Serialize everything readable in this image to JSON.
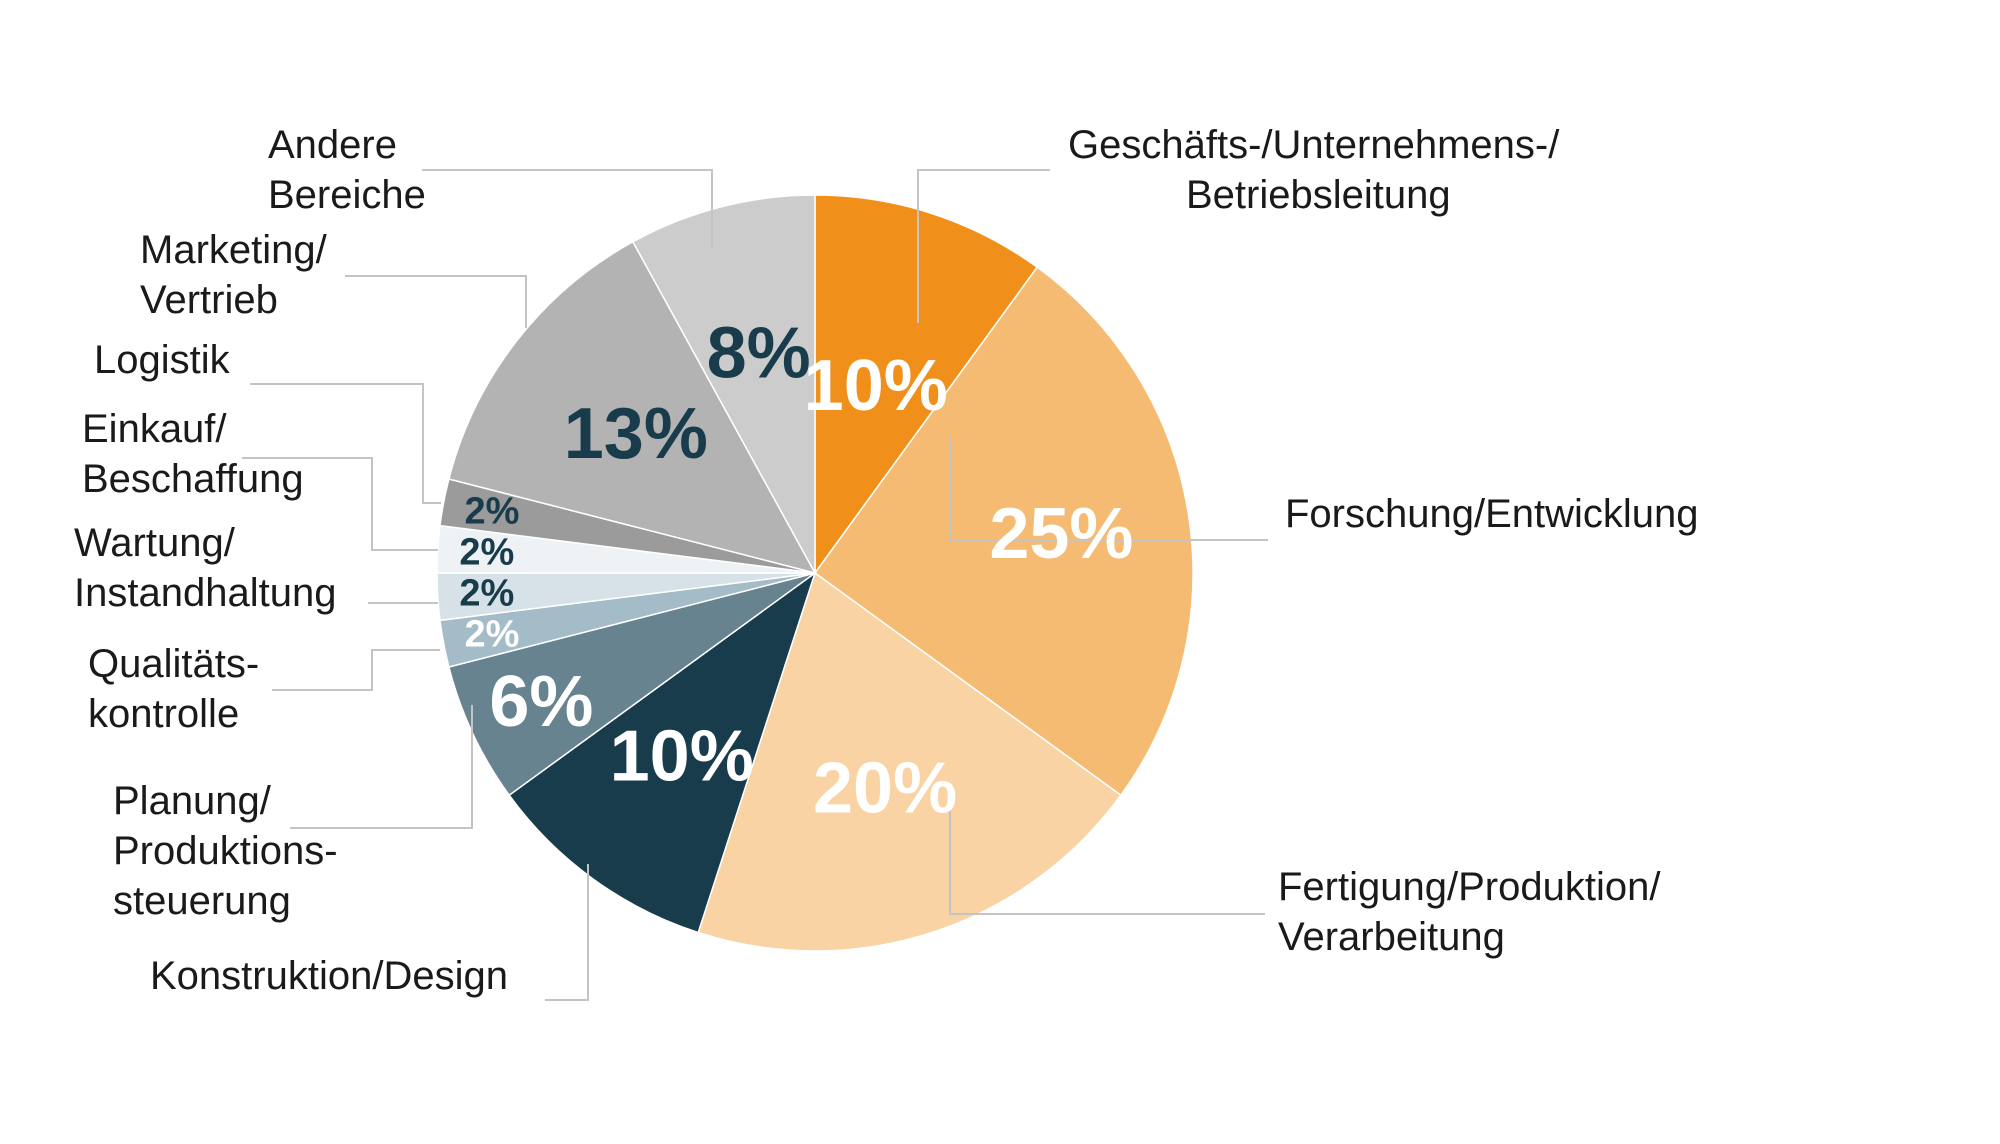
{
  "chart_data": {
    "type": "pie",
    "start": "12 o'clock",
    "direction": "clockwise",
    "slices": [
      {
        "label": "Geschäfts-/Unternehmens-/ Betriebsleitung",
        "lines": [
          "Geschäfts-/Unternehmens-/",
          "Betriebsleitung"
        ],
        "value": 10,
        "value_label": "10%",
        "color": "#F0901A",
        "text_color": "#FFFFFF"
      },
      {
        "label": "Forschung/Entwicklung",
        "lines": [
          "Forschung/Entwicklung"
        ],
        "value": 25,
        "value_label": "25%",
        "color": "#F5BB73",
        "text_color": "#FFFFFF"
      },
      {
        "label": "Fertigung/Produktion/ Verarbeitung",
        "lines": [
          "Fertigung/Produktion/",
          "Verarbeitung"
        ],
        "value": 20,
        "value_label": "20%",
        "color": "#F9D3A3",
        "text_color": "#FFFFFF"
      },
      {
        "label": "Konstruktion/Design",
        "lines": [
          "Konstruktion/Design"
        ],
        "value": 10,
        "value_label": "10%",
        "color": "#183C4B",
        "text_color": "#FFFFFF"
      },
      {
        "label": "Planung/ Produktions- steuerung",
        "lines": [
          "Planung/",
          "Produktions-",
          "steuerung"
        ],
        "value": 6,
        "value_label": "6%",
        "color": "#66838F",
        "text_color": "#FFFFFF"
      },
      {
        "label": "Qualitäts- kontrolle",
        "lines": [
          "Qualitäts-",
          "kontrolle"
        ],
        "value": 2,
        "value_label": "2%",
        "color": "#A4BBC8",
        "text_color": "#FFFFFF"
      },
      {
        "label": "Wartung/ Instandhaltung",
        "lines": [
          "Wartung/",
          "Instandhaltung"
        ],
        "value": 2,
        "value_label": "2%",
        "color": "#D6E1E8",
        "text_color": "#183C4B"
      },
      {
        "label": "Einkauf/ Beschaffung",
        "lines": [
          "Einkauf/",
          "Beschaffung"
        ],
        "value": 2,
        "value_label": "2%",
        "color": "#EEF2F5",
        "text_color": "#183C4B"
      },
      {
        "label": "Logistik",
        "lines": [
          "Logistik"
        ],
        "value": 2,
        "value_label": "2%",
        "color": "#9B9B9B",
        "text_color": "#183C4B"
      },
      {
        "label": "Marketing/ Vertrieb",
        "lines": [
          "Marketing/",
          "Vertrieb"
        ],
        "value": 13,
        "value_label": "13%",
        "color": "#B3B3B3",
        "text_color": "#183C4B"
      },
      {
        "label": "Andere Bereiche",
        "lines": [
          "Andere",
          "Bereiche"
        ],
        "value": 8,
        "value_label": "8%",
        "color": "#CCCCCC",
        "text_color": "#183C4B"
      }
    ]
  }
}
